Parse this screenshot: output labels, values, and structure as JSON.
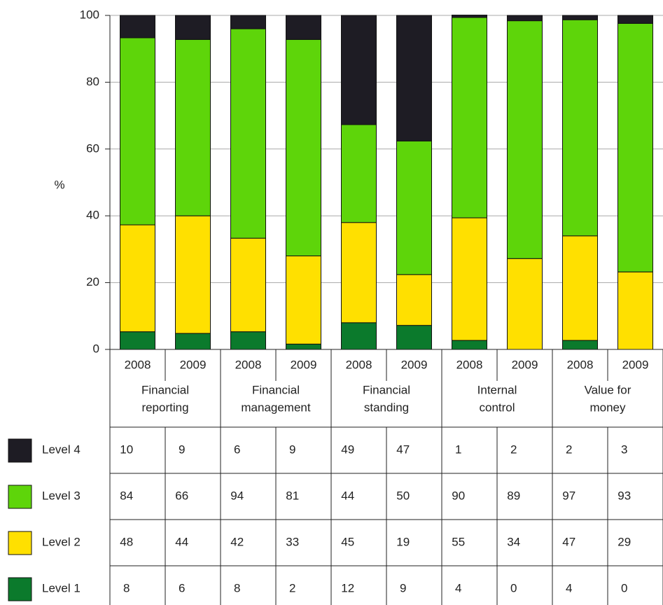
{
  "chart_data": {
    "type": "stacked-bar",
    "y_label": "%",
    "categories": [
      "2008",
      "2009",
      "2008",
      "2009",
      "2008",
      "2009",
      "2008",
      "2009",
      "2008",
      "2009"
    ],
    "groups": [
      [
        "Financial",
        "reporting"
      ],
      [
        "Financial",
        "management"
      ],
      [
        "Financial",
        "standing"
      ],
      [
        "Internal",
        "control"
      ],
      [
        "Value for",
        "money"
      ]
    ],
    "ylim": [
      0,
      100
    ],
    "yticks": [
      0,
      20,
      40,
      60,
      80,
      100
    ],
    "grid": true,
    "series": [
      {
        "name": "Level 4",
        "color": "#1e1c24",
        "values": [
          6.7,
          7.2,
          4.0,
          7.2,
          32.7,
          37.6,
          0.7,
          1.6,
          1.3,
          2.4
        ],
        "counts": [
          10,
          9,
          6,
          9,
          49,
          47,
          1,
          2,
          2,
          3
        ]
      },
      {
        "name": "Level 3",
        "color": "#5ed50a",
        "values": [
          56.0,
          52.8,
          62.7,
          64.8,
          29.3,
          40.0,
          60.0,
          71.2,
          64.7,
          74.4
        ],
        "counts": [
          84,
          66,
          94,
          81,
          44,
          50,
          90,
          89,
          97,
          93
        ]
      },
      {
        "name": "Level 2",
        "color": "#ffe000",
        "values": [
          32.0,
          35.2,
          28.0,
          26.4,
          30.0,
          15.2,
          36.7,
          27.2,
          31.3,
          23.2
        ],
        "counts": [
          48,
          44,
          42,
          33,
          45,
          19,
          55,
          34,
          47,
          29
        ]
      },
      {
        "name": "Level 1",
        "color": "#0b7a2c",
        "values": [
          5.3,
          4.8,
          5.3,
          1.6,
          8.0,
          7.2,
          2.7,
          0,
          2.7,
          0
        ],
        "counts": [
          8,
          6,
          8,
          2,
          12,
          9,
          4,
          0,
          4,
          0
        ]
      }
    ]
  }
}
